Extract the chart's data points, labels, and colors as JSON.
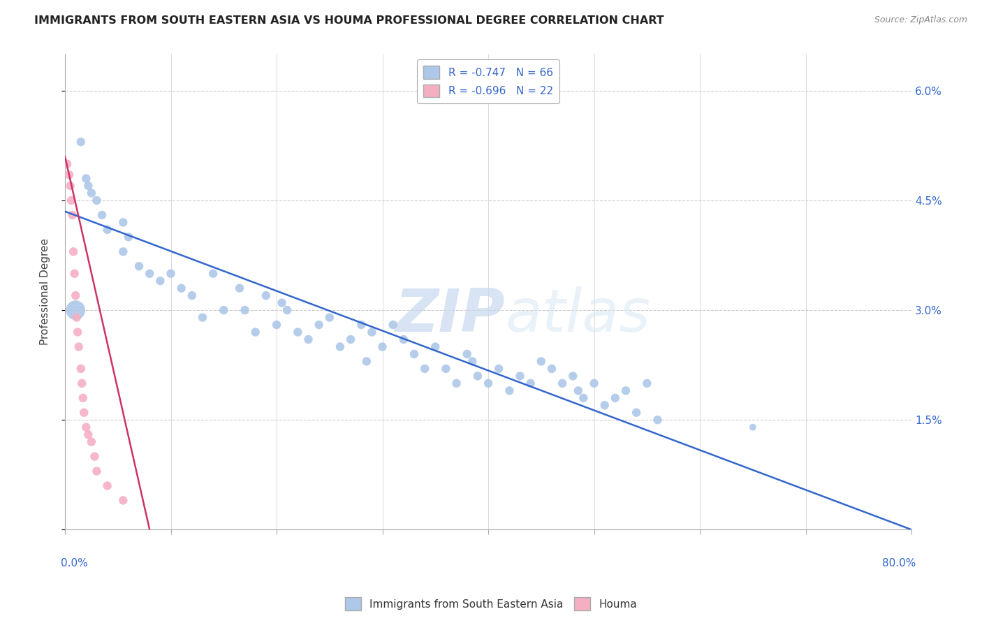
{
  "title": "IMMIGRANTS FROM SOUTH EASTERN ASIA VS HOUMA PROFESSIONAL DEGREE CORRELATION CHART",
  "source": "Source: ZipAtlas.com",
  "ylabel": "Professional Degree",
  "xmin": 0.0,
  "xmax": 80.0,
  "ymin": 0.0,
  "ymax": 6.5,
  "watermark_zip": "ZIP",
  "watermark_atlas": "atlas",
  "legend_entry1": "R = -0.747   N = 66",
  "legend_entry2": "R = -0.696   N = 22",
  "blue_color": "#adc8e8",
  "pink_color": "#f4afc3",
  "blue_line_color": "#3366cc",
  "pink_line_color": "#cc3366",
  "blue_scatter_x": [
    1.0,
    1.5,
    2.0,
    2.2,
    2.5,
    3.0,
    3.5,
    4.0,
    5.5,
    5.5,
    6.0,
    7.0,
    8.0,
    9.0,
    10.0,
    11.0,
    12.0,
    13.0,
    14.0,
    15.0,
    16.5,
    17.0,
    18.0,
    19.0,
    20.0,
    20.5,
    21.0,
    22.0,
    23.0,
    24.0,
    25.0,
    26.0,
    27.0,
    28.0,
    28.5,
    29.0,
    30.0,
    31.0,
    32.0,
    33.0,
    34.0,
    35.0,
    36.0,
    37.0,
    38.0,
    38.5,
    39.0,
    40.0,
    41.0,
    42.0,
    43.0,
    44.0,
    45.0,
    46.0,
    47.0,
    48.0,
    48.5,
    49.0,
    50.0,
    51.0,
    52.0,
    53.0,
    54.0,
    55.0,
    56.0,
    65.0
  ],
  "blue_scatter_y": [
    3.0,
    5.3,
    4.8,
    4.7,
    4.6,
    4.5,
    4.3,
    4.1,
    4.2,
    3.8,
    4.0,
    3.6,
    3.5,
    3.4,
    3.5,
    3.3,
    3.2,
    2.9,
    3.5,
    3.0,
    3.3,
    3.0,
    2.7,
    3.2,
    2.8,
    3.1,
    3.0,
    2.7,
    2.6,
    2.8,
    2.9,
    2.5,
    2.6,
    2.8,
    2.3,
    2.7,
    2.5,
    2.8,
    2.6,
    2.4,
    2.2,
    2.5,
    2.2,
    2.0,
    2.4,
    2.3,
    2.1,
    2.0,
    2.2,
    1.9,
    2.1,
    2.0,
    2.3,
    2.2,
    2.0,
    2.1,
    1.9,
    1.8,
    2.0,
    1.7,
    1.8,
    1.9,
    1.6,
    2.0,
    1.5,
    1.4
  ],
  "blue_scatter_sizes": [
    400,
    80,
    80,
    80,
    80,
    80,
    80,
    80,
    80,
    80,
    80,
    80,
    80,
    80,
    80,
    80,
    80,
    80,
    80,
    80,
    80,
    80,
    80,
    80,
    80,
    80,
    80,
    80,
    80,
    80,
    80,
    80,
    80,
    80,
    80,
    80,
    80,
    80,
    80,
    80,
    80,
    80,
    80,
    80,
    80,
    80,
    80,
    80,
    80,
    80,
    80,
    80,
    80,
    80,
    80,
    80,
    80,
    80,
    80,
    80,
    80,
    80,
    80,
    80,
    80,
    50
  ],
  "pink_scatter_x": [
    0.2,
    0.4,
    0.5,
    0.6,
    0.7,
    0.8,
    0.9,
    1.0,
    1.1,
    1.2,
    1.3,
    1.5,
    1.6,
    1.7,
    1.8,
    2.0,
    2.2,
    2.5,
    2.8,
    3.0,
    4.0,
    5.5
  ],
  "pink_scatter_y": [
    5.0,
    4.85,
    4.7,
    4.5,
    4.3,
    3.8,
    3.5,
    3.2,
    2.9,
    2.7,
    2.5,
    2.2,
    2.0,
    1.8,
    1.6,
    1.4,
    1.3,
    1.2,
    1.0,
    0.8,
    0.6,
    0.4
  ],
  "pink_scatter_sizes": [
    80,
    80,
    80,
    80,
    80,
    80,
    80,
    80,
    80,
    80,
    80,
    80,
    80,
    80,
    80,
    80,
    80,
    80,
    80,
    80,
    80,
    80
  ],
  "blue_trendline_x": [
    0.0,
    80.0
  ],
  "blue_trendline_y": [
    4.35,
    0.0
  ],
  "pink_trendline_x": [
    0.0,
    8.0
  ],
  "pink_trendline_y": [
    5.1,
    0.0
  ]
}
